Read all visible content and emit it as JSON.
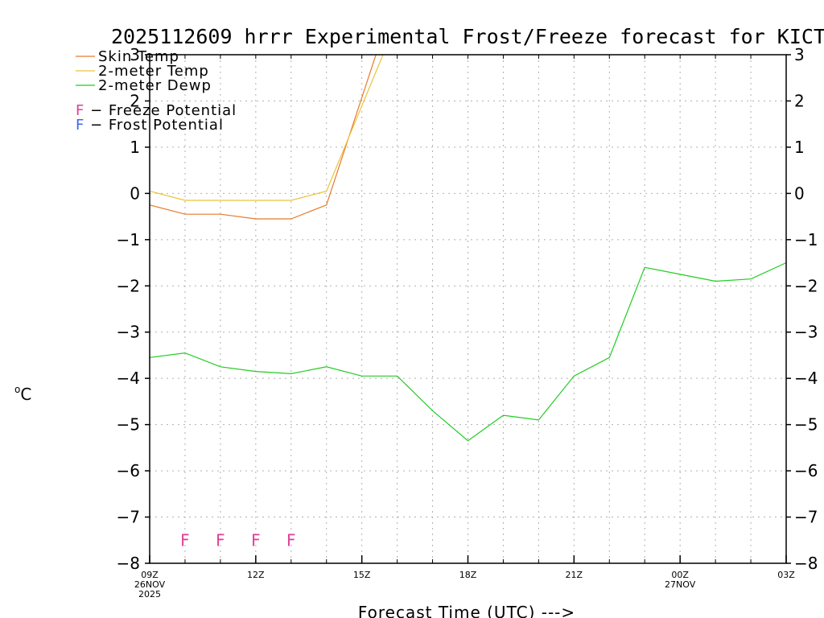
{
  "chart_data": {
    "type": "line",
    "title": "2025112609 hrrr Experimental Frost/Freeze forecast for KICT",
    "ylabel": "°C",
    "ylabel_degree": "o",
    "ylabel_unit": "C",
    "xlabel": "Forecast Time (UTC) --->",
    "ylim": [
      -8,
      3
    ],
    "xlim": [
      9,
      27
    ],
    "grid": true,
    "yticks": [
      -8,
      -7,
      -6,
      -5,
      -4,
      -3,
      -2,
      -1,
      0,
      1,
      2,
      3
    ],
    "ytick_labels": [
      "−8",
      "−7",
      "−6",
      "−5",
      "−4",
      "−3",
      "−2",
      "−1",
      "0",
      "1",
      "2",
      "3"
    ],
    "xticks": [
      {
        "hour": 9,
        "lines": [
          "09Z",
          "26NOV",
          "2025"
        ]
      },
      {
        "hour": 12,
        "lines": [
          "12Z"
        ]
      },
      {
        "hour": 15,
        "lines": [
          "15Z"
        ]
      },
      {
        "hour": 18,
        "lines": [
          "18Z"
        ]
      },
      {
        "hour": 21,
        "lines": [
          "21Z"
        ]
      },
      {
        "hour": 24,
        "lines": [
          "00Z",
          "27NOV"
        ]
      },
      {
        "hour": 27,
        "lines": [
          "03Z"
        ]
      }
    ],
    "series": [
      {
        "name": "Skin Temp",
        "color": "#e87a2c",
        "x": [
          9,
          10,
          11,
          12,
          13,
          14,
          15.4
        ],
        "values": [
          -0.25,
          -0.45,
          -0.45,
          -0.55,
          -0.55,
          -0.25,
          3.0
        ]
      },
      {
        "name": "2-meter Temp",
        "color": "#e8c43c",
        "x": [
          9,
          10,
          11,
          12,
          13,
          14,
          15.6
        ],
        "values": [
          0.05,
          -0.15,
          -0.15,
          -0.15,
          -0.15,
          0.05,
          3.0
        ]
      },
      {
        "name": "2-meter Dewp",
        "color": "#22cc22",
        "x": [
          9,
          10,
          11,
          12,
          13,
          14,
          15,
          16,
          17,
          18,
          19,
          20,
          21,
          22,
          23,
          24,
          25,
          26,
          27
        ],
        "values": [
          -3.55,
          -3.45,
          -3.75,
          -3.85,
          -3.9,
          -3.75,
          -3.95,
          -3.95,
          -4.7,
          -5.35,
          -4.8,
          -4.9,
          -3.95,
          -3.55,
          -1.6,
          -1.75,
          -1.9,
          -1.85,
          -1.5
        ]
      }
    ],
    "potential_legend": [
      {
        "letter": "F",
        "text": " − Freeze Potential",
        "color": "#e0409a"
      },
      {
        "letter": "F",
        "text": " − Frost Potential",
        "color": "#3a6ae8"
      }
    ],
    "freeze_flags": {
      "letter": "F",
      "color": "#e0409a",
      "hours": [
        10,
        11,
        12,
        13
      ],
      "value": -7.5
    }
  }
}
